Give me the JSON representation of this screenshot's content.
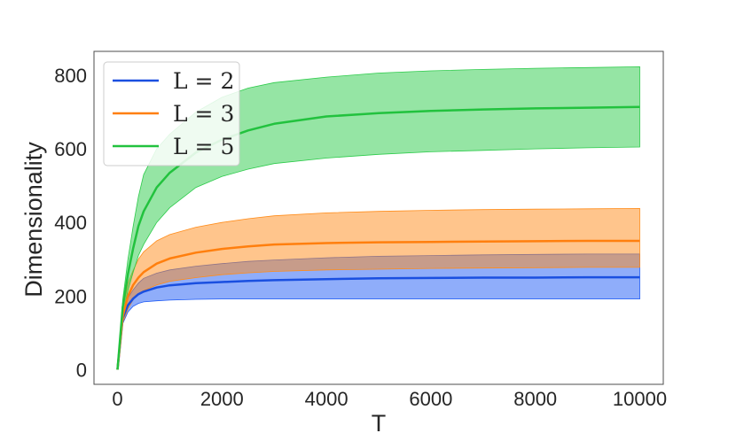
{
  "chart_data": {
    "type": "line",
    "title": "",
    "xlabel": "T",
    "ylabel": "Dimensionality",
    "xlim": [
      -450,
      10450
    ],
    "ylim": [
      -40,
      865
    ],
    "xticks": [
      0,
      2000,
      4000,
      6000,
      8000,
      10000
    ],
    "yticks": [
      0,
      200,
      400,
      600,
      800
    ],
    "grid": false,
    "legend_position": "top-left",
    "x": [
      0,
      100,
      200,
      300,
      400,
      500,
      750,
      1000,
      1500,
      2000,
      2500,
      3000,
      4000,
      5000,
      6000,
      7000,
      8000,
      9000,
      10000
    ],
    "series": [
      {
        "name": "L = 2",
        "color": "#1a4fe0",
        "band_color": "#1f5bf5",
        "values": [
          0,
          140,
          175,
          193,
          205,
          212,
          223,
          229,
          235,
          238,
          241,
          243,
          246,
          248,
          249,
          250,
          250,
          251,
          251
        ],
        "lower": [
          0,
          125,
          157,
          172,
          180,
          184,
          187,
          189,
          191,
          192,
          192,
          192,
          192,
          192,
          192,
          192,
          192,
          192,
          192
        ],
        "upper": [
          0,
          150,
          195,
          217,
          235,
          248,
          262,
          271,
          281,
          288,
          294,
          298,
          304,
          308,
          310,
          312,
          313,
          314,
          314
        ]
      },
      {
        "name": "L = 3",
        "color": "#ff7f0e",
        "band_color": "#ff8c1a",
        "values": [
          0,
          145,
          200,
          230,
          250,
          265,
          288,
          302,
          318,
          328,
          335,
          340,
          344,
          346,
          347,
          348,
          349,
          350,
          350
        ],
        "lower": [
          0,
          128,
          165,
          190,
          205,
          215,
          230,
          240,
          250,
          258,
          263,
          267,
          271,
          273,
          275,
          276,
          277,
          278,
          278
        ],
        "upper": [
          0,
          160,
          235,
          270,
          300,
          320,
          350,
          367,
          387,
          400,
          410,
          418,
          426,
          430,
          433,
          435,
          436,
          437,
          438
        ]
      },
      {
        "name": "L = 5",
        "color": "#22c23e",
        "band_color": "#2ccb4a",
        "values": [
          0,
          170,
          260,
          330,
          390,
          430,
          495,
          535,
          590,
          625,
          650,
          668,
          688,
          697,
          703,
          707,
          710,
          712,
          714
        ],
        "lower": [
          0,
          150,
          215,
          265,
          310,
          340,
          400,
          440,
          495,
          525,
          545,
          560,
          575,
          585,
          592,
          596,
          600,
          603,
          605
        ],
        "upper": [
          0,
          190,
          300,
          390,
          470,
          530,
          600,
          640,
          700,
          740,
          765,
          780,
          795,
          806,
          812,
          816,
          819,
          821,
          823
        ]
      }
    ]
  }
}
